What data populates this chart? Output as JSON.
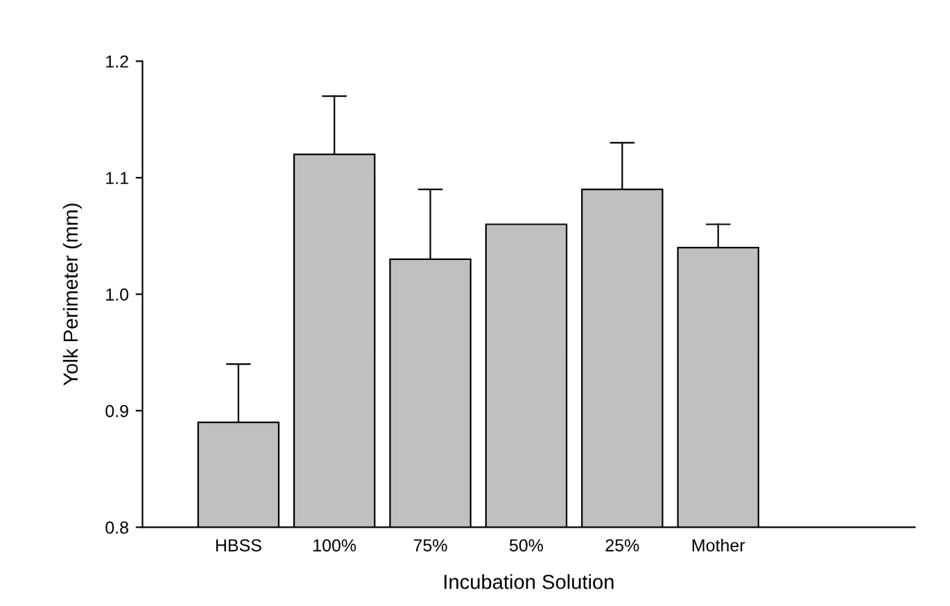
{
  "chart_data": {
    "type": "bar",
    "xlabel": "Incubation Solution",
    "ylabel": "Yolk Perimeter (mm)",
    "categories": [
      "HBSS",
      "100%",
      "75%",
      "50%",
      "25%",
      "Mother"
    ],
    "values": [
      0.89,
      1.12,
      1.03,
      1.06,
      1.09,
      1.04
    ],
    "errors": [
      [
        0.89,
        0.94
      ],
      [
        1.12,
        1.17
      ],
      [
        1.03,
        1.09
      ],
      null,
      [
        1.09,
        1.13
      ],
      [
        1.04,
        1.06
      ]
    ],
    "color": "#c0c0c0",
    "ylim": [
      0.8,
      1.2
    ],
    "yticks": [
      0.8,
      0.9,
      {
        "value": 1.0,
        "label": "1.0"
      },
      1.1,
      1.2
    ],
    "grid": false,
    "legend": false
  }
}
